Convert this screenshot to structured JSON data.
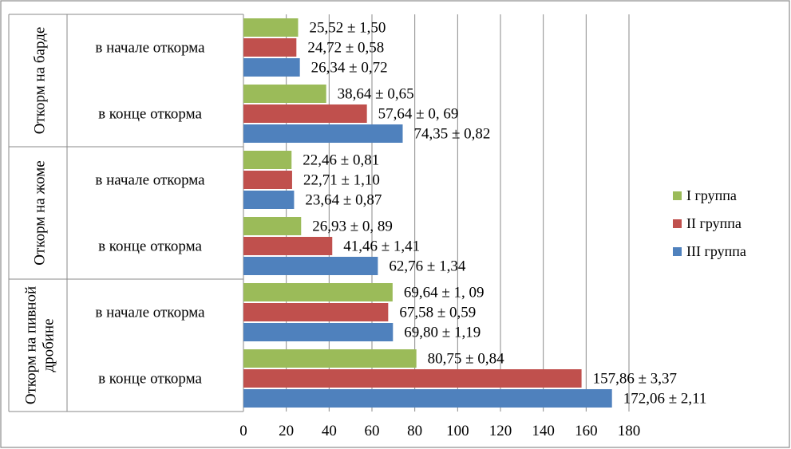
{
  "chart_data": {
    "type": "bar",
    "orientation": "horizontal",
    "title": "",
    "xlabel": "",
    "ylabel": "",
    "xlim": [
      0,
      180
    ],
    "x_ticks": [
      "0",
      "20",
      "40",
      "60",
      "80",
      "100",
      "120",
      "140",
      "160",
      "180"
    ],
    "grid": "vertical",
    "legend_position": "right",
    "groups": [
      {
        "label": "Откорм на барде",
        "subgroups": [
          {
            "label": "в начале откорма",
            "bars": [
              {
                "series": "I группа",
                "value": 25.52,
                "text": "25,52 ± 1,50"
              },
              {
                "series": "II группа",
                "value": 24.72,
                "text": "24,72 ± 0,58"
              },
              {
                "series": "III группа",
                "value": 26.34,
                "text": "26,34 ± 0,72"
              }
            ]
          },
          {
            "label": "в конце откорма",
            "bars": [
              {
                "series": "I группа",
                "value": 38.64,
                "text": "38,64 ± 0,65"
              },
              {
                "series": "II группа",
                "value": 57.64,
                "text": "57,64 ± 0, 69"
              },
              {
                "series": "III группа",
                "value": 74.35,
                "text": "74,35 ± 0,82"
              }
            ]
          }
        ]
      },
      {
        "label": "Откорм на жоме",
        "subgroups": [
          {
            "label": "в начале откорма",
            "bars": [
              {
                "series": "I группа",
                "value": 22.46,
                "text": "22,46 ± 0,81"
              },
              {
                "series": "II группа",
                "value": 22.71,
                "text": "22,71 ± 1,10"
              },
              {
                "series": "III группа",
                "value": 23.64,
                "text": "23,64 ± 0,87"
              }
            ]
          },
          {
            "label": "в конце откорма",
            "bars": [
              {
                "series": "I группа",
                "value": 26.93,
                "text": "26,93 ± 0, 89"
              },
              {
                "series": "II группа",
                "value": 41.46,
                "text": "41,46 ± 1,41"
              },
              {
                "series": "III группа",
                "value": 62.76,
                "text": "62,76 ± 1,34"
              }
            ]
          }
        ]
      },
      {
        "label": "Откорм на пивной дробине",
        "label_lines": [
          "Откорм на пивной",
          "дробине"
        ],
        "subgroups": [
          {
            "label": "в начале откорма",
            "bars": [
              {
                "series": "I группа",
                "value": 69.64,
                "text": "69,64 ± 1, 09"
              },
              {
                "series": "II группа",
                "value": 67.58,
                "text": "67,58 ± 0,59"
              },
              {
                "series": "III группа",
                "value": 69.8,
                "text": "69,80 ± 1,19"
              }
            ]
          },
          {
            "label": "в конце откорма",
            "bars": [
              {
                "series": "I группа",
                "value": 80.75,
                "text": "80,75 ± 0,84"
              },
              {
                "series": "II группа",
                "value": 157.86,
                "text": "157,86 ± 3,37"
              },
              {
                "series": "III группа",
                "value": 172.06,
                "text": "172,06 ± 2,11"
              }
            ]
          }
        ]
      }
    ],
    "series": [
      {
        "name": "I группа",
        "color": "#9BBB59"
      },
      {
        "name": "II группа",
        "color": "#C0504D"
      },
      {
        "name": "III группа",
        "color": "#4F81BD"
      }
    ]
  }
}
